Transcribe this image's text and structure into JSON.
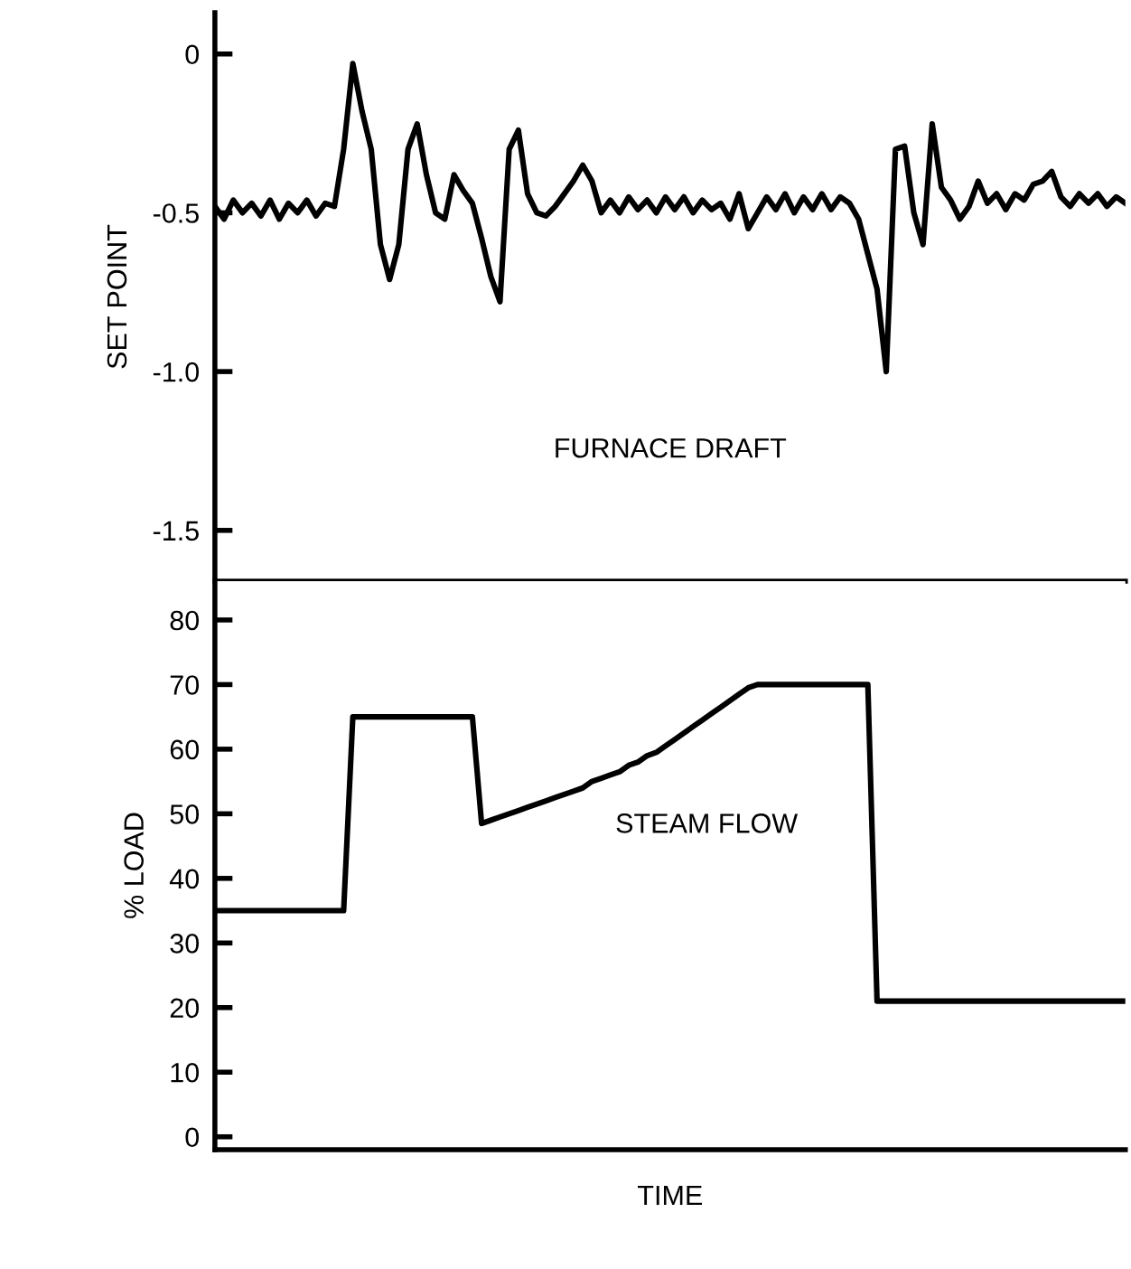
{
  "chart_data": [
    {
      "type": "line",
      "ylabel": "SET POINT",
      "tick_labels": "y",
      "grid": false,
      "legend": false,
      "line_style": "solid",
      "categories": [
        null,
        null,
        null,
        null,
        null,
        null,
        null,
        null,
        null,
        null,
        null,
        null,
        null,
        null,
        null,
        null,
        null,
        null,
        null,
        null,
        null,
        null,
        null,
        null,
        null,
        null,
        null,
        null,
        null,
        null,
        null,
        null,
        null,
        null,
        null,
        null,
        null,
        null,
        null,
        null,
        null,
        null,
        null,
        null,
        null,
        null,
        null,
        null,
        null,
        null,
        null,
        null,
        null,
        null,
        null,
        null,
        null,
        null,
        null,
        null,
        null,
        null,
        null,
        null,
        null,
        null,
        null,
        null,
        null,
        null,
        null,
        null,
        null,
        null,
        null,
        null,
        null,
        null,
        null,
        null,
        null,
        null,
        null,
        null,
        null,
        null,
        null,
        null,
        null,
        null,
        null,
        null,
        null,
        null,
        null,
        null,
        null,
        null,
        null,
        null
      ],
      "ylim": [
        -1.66,
        0.13
      ],
      "yticks": [
        0,
        -0.5,
        {
          "value": -1.0,
          "label": "-1.0"
        },
        -1.5
      ],
      "series": [
        {
          "name": "FURNACE DRAFT",
          "color": "#000000",
          "values": [
            -0.48,
            -0.52,
            -0.46,
            -0.5,
            -0.47,
            -0.51,
            -0.46,
            -0.52,
            -0.47,
            -0.5,
            -0.46,
            -0.51,
            -0.47,
            -0.48,
            -0.3,
            -0.03,
            -0.18,
            -0.3,
            -0.6,
            -0.71,
            -0.6,
            -0.3,
            -0.22,
            -0.38,
            -0.5,
            -0.52,
            -0.38,
            -0.43,
            -0.47,
            -0.58,
            -0.7,
            -0.78,
            -0.3,
            -0.24,
            -0.44,
            -0.5,
            -0.51,
            -0.48,
            -0.44,
            -0.4,
            -0.35,
            -0.4,
            -0.5,
            -0.46,
            -0.5,
            -0.45,
            -0.49,
            -0.46,
            -0.5,
            -0.45,
            -0.49,
            -0.45,
            -0.5,
            -0.46,
            -0.49,
            -0.47,
            -0.52,
            -0.44,
            -0.55,
            -0.5,
            -0.45,
            -0.49,
            -0.44,
            -0.5,
            -0.45,
            -0.49,
            -0.44,
            -0.49,
            -0.45,
            -0.47,
            -0.52,
            -0.63,
            -0.74,
            -1.0,
            -0.3,
            -0.29,
            -0.5,
            -0.6,
            -0.22,
            -0.42,
            -0.46,
            -0.52,
            -0.48,
            -0.4,
            -0.47,
            -0.44,
            -0.49,
            -0.44,
            -0.46,
            -0.41,
            -0.4,
            -0.37,
            -0.45,
            -0.48,
            -0.44,
            -0.47,
            -0.44,
            -0.48,
            -0.45,
            -0.47
          ]
        }
      ]
    },
    {
      "type": "line",
      "ylabel": "% LOAD",
      "xlabel": "TIME",
      "tick_labels": "y",
      "grid": false,
      "legend": false,
      "line_style": "solid",
      "categories": [
        null,
        null,
        null,
        null,
        null,
        null,
        null,
        null,
        null,
        null,
        null,
        null,
        null,
        null,
        null,
        null,
        null,
        null,
        null,
        null,
        null,
        null,
        null,
        null,
        null,
        null,
        null,
        null,
        null,
        null,
        null,
        null,
        null,
        null,
        null,
        null,
        null,
        null,
        null,
        null,
        null,
        null,
        null,
        null,
        null,
        null,
        null,
        null,
        null,
        null,
        null,
        null,
        null,
        null,
        null,
        null,
        null,
        null,
        null,
        null,
        null,
        null,
        null,
        null,
        null,
        null,
        null,
        null,
        null,
        null,
        null,
        null,
        null,
        null,
        null,
        null,
        null,
        null,
        null,
        null,
        null,
        null,
        null,
        null,
        null,
        null,
        null,
        null,
        null,
        null,
        null,
        null,
        null,
        null,
        null,
        null,
        null,
        null,
        null,
        null
      ],
      "ylim": [
        -2,
        86
      ],
      "yticks": [
        0,
        10,
        20,
        30,
        40,
        50,
        60,
        70,
        80
      ],
      "series": [
        {
          "name": "STEAM FLOW",
          "color": "#000000",
          "values": [
            35,
            35,
            35,
            35,
            35,
            35,
            35,
            35,
            35,
            35,
            35,
            35,
            35,
            35,
            35,
            65,
            65,
            65,
            65,
            65,
            65,
            65,
            65,
            65,
            65,
            65,
            65,
            65,
            65,
            48.5,
            49,
            49.5,
            50,
            50.5,
            51,
            51.5,
            52,
            52.5,
            53,
            53.5,
            54,
            55,
            55.5,
            56,
            56.5,
            57.5,
            58,
            59,
            59.5,
            60.5,
            61.5,
            62.5,
            63.5,
            64.5,
            65.5,
            66.5,
            67.5,
            68.5,
            69.5,
            70,
            70,
            70,
            70,
            70,
            70,
            70,
            70,
            70,
            70,
            70,
            70,
            70,
            21,
            21,
            21,
            21,
            21,
            21,
            21,
            21,
            21,
            21,
            21,
            21,
            21,
            21,
            21,
            21,
            21,
            21,
            21,
            21,
            21,
            21,
            21,
            21,
            21,
            21,
            21,
            21
          ]
        }
      ]
    }
  ]
}
